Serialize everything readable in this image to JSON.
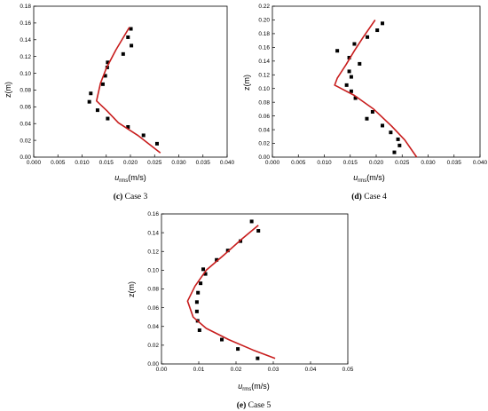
{
  "chart_data": [
    {
      "type": "scatter",
      "caption_letter": "(c)",
      "caption_text": " Case 3",
      "xlabel_main": "u",
      "xlabel_sub": "rms",
      "xlabel_unit": "(m/s)",
      "ylabel": "z(m)",
      "xlim": [
        0,
        0.04
      ],
      "ylim": [
        0,
        0.18
      ],
      "xticks": [
        0,
        0.005,
        0.01,
        0.015,
        0.02,
        0.025,
        0.03,
        0.035,
        0.04
      ],
      "xtick_labels": [
        "0.000",
        "0.005",
        "0.010",
        "0.015",
        "0.020",
        "0.025",
        "0.030",
        "0.035",
        "0.040"
      ],
      "yticks": [
        0,
        0.02,
        0.04,
        0.06,
        0.08,
        0.1,
        0.12,
        0.14,
        0.16,
        0.18
      ],
      "ytick_labels": [
        "0.00",
        "0.02",
        "0.04",
        "0.06",
        "0.08",
        "0.10",
        "0.12",
        "0.14",
        "0.16",
        "0.18"
      ],
      "series": [
        {
          "kind": "markers",
          "color": "#000000",
          "points": [
            [
              0.0201,
              0.153
            ],
            [
              0.0195,
              0.143
            ],
            [
              0.0202,
              0.133
            ],
            [
              0.0185,
              0.123
            ],
            [
              0.0153,
              0.113
            ],
            [
              0.0152,
              0.107
            ],
            [
              0.0148,
              0.097
            ],
            [
              0.0143,
              0.087
            ],
            [
              0.0118,
              0.076
            ],
            [
              0.0115,
              0.066
            ],
            [
              0.0132,
              0.056
            ],
            [
              0.0153,
              0.046
            ],
            [
              0.0195,
              0.036
            ],
            [
              0.0227,
              0.026
            ],
            [
              0.0255,
              0.016
            ]
          ]
        },
        {
          "kind": "line",
          "color": "#c81d1d",
          "points": [
            [
              0.0198,
              0.155
            ],
            [
              0.017,
              0.128
            ],
            [
              0.015,
              0.106
            ],
            [
              0.0138,
              0.088
            ],
            [
              0.013,
              0.067
            ],
            [
              0.0152,
              0.055
            ],
            [
              0.0175,
              0.041
            ],
            [
              0.0215,
              0.026
            ],
            [
              0.0262,
              0.005
            ]
          ]
        }
      ]
    },
    {
      "type": "scatter",
      "caption_letter": "(d)",
      "caption_text": " Case 4",
      "xlabel_main": "u",
      "xlabel_sub": "rms",
      "xlabel_unit": "(m/s)",
      "ylabel": "z(m)",
      "xlim": [
        0,
        0.04
      ],
      "ylim": [
        0,
        0.22
      ],
      "xticks": [
        0,
        0.005,
        0.01,
        0.015,
        0.02,
        0.025,
        0.03,
        0.035,
        0.04
      ],
      "xtick_labels": [
        "0.000",
        "0.005",
        "0.010",
        "0.015",
        "0.020",
        "0.025",
        "0.030",
        "0.035",
        "0.040"
      ],
      "yticks": [
        0,
        0.02,
        0.04,
        0.06,
        0.08,
        0.1,
        0.12,
        0.14,
        0.16,
        0.18,
        0.2,
        0.22
      ],
      "ytick_labels": [
        "0.00",
        "0.02",
        "0.04",
        "0.06",
        "0.08",
        "0.10",
        "0.12",
        "0.14",
        "0.16",
        "0.18",
        "0.20",
        "0.22"
      ],
      "series": [
        {
          "kind": "markers",
          "color": "#000000",
          "points": [
            [
              0.0212,
              0.195
            ],
            [
              0.0202,
              0.185
            ],
            [
              0.0183,
              0.175
            ],
            [
              0.0158,
              0.165
            ],
            [
              0.0125,
              0.155
            ],
            [
              0.0148,
              0.145
            ],
            [
              0.0168,
              0.136
            ],
            [
              0.0148,
              0.125
            ],
            [
              0.0152,
              0.117
            ],
            [
              0.0143,
              0.105
            ],
            [
              0.0152,
              0.096
            ],
            [
              0.016,
              0.086
            ],
            [
              0.0193,
              0.066
            ],
            [
              0.0182,
              0.056
            ],
            [
              0.0212,
              0.046
            ],
            [
              0.0228,
              0.036
            ],
            [
              0.0242,
              0.026
            ],
            [
              0.0245,
              0.017
            ],
            [
              0.0235,
              0.007
            ]
          ]
        },
        {
          "kind": "line",
          "color": "#c81d1d",
          "points": [
            [
              0.0198,
              0.2
            ],
            [
              0.0175,
              0.175
            ],
            [
              0.0158,
              0.155
            ],
            [
              0.0142,
              0.135
            ],
            [
              0.0125,
              0.115
            ],
            [
              0.012,
              0.105
            ],
            [
              0.0158,
              0.09
            ],
            [
              0.0195,
              0.07
            ],
            [
              0.023,
              0.045
            ],
            [
              0.0255,
              0.025
            ],
            [
              0.0278,
              0.0
            ]
          ]
        }
      ]
    },
    {
      "type": "scatter",
      "caption_letter": "(e)",
      "caption_text": " Case 5",
      "xlabel_main": "u",
      "xlabel_sub": "rms",
      "xlabel_unit": "(m/s)",
      "ylabel": "z(m)",
      "xlim": [
        0,
        0.05
      ],
      "ylim": [
        0,
        0.16
      ],
      "xticks": [
        0,
        0.01,
        0.02,
        0.03,
        0.04,
        0.05
      ],
      "xtick_labels": [
        "0.00",
        "0.01",
        "0.02",
        "0.03",
        "0.04",
        "0.05"
      ],
      "yticks": [
        0,
        0.02,
        0.04,
        0.06,
        0.08,
        0.1,
        0.12,
        0.14,
        0.16
      ],
      "ytick_labels": [
        "0.00",
        "0.02",
        "0.04",
        "0.06",
        "0.08",
        "0.10",
        "0.12",
        "0.14",
        "0.16"
      ],
      "series": [
        {
          "kind": "markers",
          "color": "#000000",
          "points": [
            [
              0.0242,
              0.152
            ],
            [
              0.026,
              0.142
            ],
            [
              0.0212,
              0.131
            ],
            [
              0.0178,
              0.121
            ],
            [
              0.0148,
              0.111
            ],
            [
              0.0112,
              0.101
            ],
            [
              0.0118,
              0.096
            ],
            [
              0.0105,
              0.086
            ],
            [
              0.0098,
              0.076
            ],
            [
              0.0095,
              0.066
            ],
            [
              0.0095,
              0.056
            ],
            [
              0.0097,
              0.046
            ],
            [
              0.0102,
              0.036
            ],
            [
              0.0162,
              0.026
            ],
            [
              0.0205,
              0.016
            ],
            [
              0.0258,
              0.006
            ]
          ]
        },
        {
          "kind": "line",
          "color": "#c81d1d",
          "points": [
            [
              0.026,
              0.148
            ],
            [
              0.0215,
              0.133
            ],
            [
              0.017,
              0.117
            ],
            [
              0.012,
              0.1
            ],
            [
              0.009,
              0.083
            ],
            [
              0.007,
              0.067
            ],
            [
              0.0085,
              0.05
            ],
            [
              0.012,
              0.038
            ],
            [
              0.018,
              0.026
            ],
            [
              0.0245,
              0.015
            ],
            [
              0.0305,
              0.006
            ]
          ]
        }
      ]
    }
  ]
}
